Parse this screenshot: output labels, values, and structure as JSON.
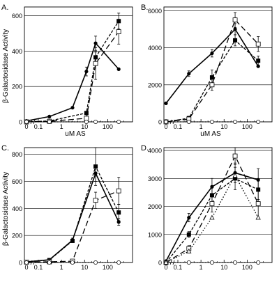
{
  "figure": {
    "shared_ylabel": "β-Galactosidase Activity",
    "shared_xlabel": "uM AS"
  },
  "chart_data": [
    {
      "panel": "A.",
      "type": "line",
      "xscale": "log",
      "x_tick_labels": [
        "0",
        "0.1",
        "1",
        "10",
        "100"
      ],
      "ylim": [
        0,
        650
      ],
      "y_ticks": [
        0,
        200,
        400,
        600
      ],
      "series": [
        {
          "style": "solid",
          "marker": "filled-circle",
          "x": [
            0,
            0.3,
            3,
            12,
            30,
            300
          ],
          "y": [
            5,
            30,
            80,
            285,
            445,
            298
          ],
          "err": [
            0,
            0,
            0,
            25,
            40,
            0
          ]
        },
        {
          "style": "dashed-short",
          "marker": "filled-square",
          "x": [
            0,
            0.3,
            12,
            30,
            300
          ],
          "y": [
            0,
            5,
            50,
            365,
            570
          ],
          "err": [
            0,
            0,
            0,
            30,
            45
          ]
        },
        {
          "style": "dashed-long",
          "marker": "open-square",
          "x": [
            0,
            0.3,
            12,
            30,
            300
          ],
          "y": [
            0,
            3,
            20,
            330,
            510
          ],
          "err": [
            0,
            0,
            0,
            90,
            70
          ]
        },
        {
          "style": "dotted",
          "marker": "open-circle",
          "x": [
            0,
            0.3,
            12,
            30,
            300
          ],
          "y": [
            0,
            0,
            0,
            0,
            0
          ],
          "err": [
            0,
            0,
            0,
            0,
            0
          ]
        }
      ]
    },
    {
      "panel": "B.",
      "type": "line",
      "xscale": "log",
      "x_tick_labels": [
        "0",
        "0.1",
        "1",
        "10",
        "100"
      ],
      "ylim": [
        0,
        6200
      ],
      "y_ticks": [
        0,
        2000,
        4000,
        6000
      ],
      "series": [
        {
          "style": "solid",
          "marker": "filled-circle",
          "x": [
            0,
            0.3,
            3,
            30,
            300
          ],
          "y": [
            1000,
            2600,
            3700,
            5000,
            3000
          ],
          "err": [
            0,
            150,
            200,
            300,
            0
          ]
        },
        {
          "style": "dashed-short",
          "marker": "filled-square",
          "x": [
            0,
            0.3,
            3,
            30,
            300
          ],
          "y": [
            0,
            200,
            2400,
            4400,
            3300
          ],
          "err": [
            0,
            100,
            400,
            300,
            250
          ]
        },
        {
          "style": "dashed-long",
          "marker": "open-square",
          "x": [
            0,
            0.3,
            3,
            30,
            300
          ],
          "y": [
            0,
            150,
            2000,
            5500,
            4200
          ],
          "err": [
            0,
            50,
            300,
            400,
            400
          ]
        },
        {
          "style": "dotted",
          "marker": "open-circle",
          "x": [
            0,
            0.3,
            3,
            30,
            300
          ],
          "y": [
            0,
            0,
            0,
            0,
            0
          ],
          "err": [
            0,
            0,
            0,
            0,
            0
          ]
        }
      ]
    },
    {
      "panel": "C.",
      "type": "line",
      "xscale": "log",
      "x_tick_labels": [
        "0",
        "0.1",
        "1",
        "10",
        "100"
      ],
      "ylim": [
        0,
        850
      ],
      "y_ticks": [
        0,
        200,
        400,
        600,
        800
      ],
      "series": [
        {
          "style": "solid",
          "marker": "filled-circle",
          "x": [
            0,
            0.3,
            3,
            30,
            300
          ],
          "y": [
            5,
            20,
            165,
            660,
            300
          ],
          "err": [
            0,
            0,
            15,
            60,
            25
          ]
        },
        {
          "style": "dashed-short",
          "marker": "filled-square",
          "x": [
            0,
            0.3,
            3,
            30,
            300
          ],
          "y": [
            5,
            18,
            160,
            710,
            370
          ],
          "err": [
            0,
            0,
            0,
            140,
            60
          ]
        },
        {
          "style": "dashed-long",
          "marker": "open-square",
          "x": [
            0,
            0.3,
            3,
            30,
            300
          ],
          "y": [
            3,
            5,
            10,
            460,
            530
          ],
          "err": [
            0,
            0,
            0,
            60,
            100
          ]
        },
        {
          "style": "dotted",
          "marker": "open-circle",
          "x": [
            0,
            0.3,
            3,
            30,
            300
          ],
          "y": [
            0,
            0,
            0,
            0,
            0
          ],
          "err": [
            0,
            0,
            0,
            0,
            0
          ]
        }
      ]
    },
    {
      "panel": "D.",
      "type": "line",
      "xscale": "log",
      "x_tick_labels": [
        "0",
        "0.1",
        "1",
        "10",
        "100"
      ],
      "ylim": [
        0,
        4100
      ],
      "y_ticks": [
        0,
        1000,
        2000,
        3000,
        4000
      ],
      "series": [
        {
          "style": "solid",
          "marker": "filled-circle",
          "x": [
            0,
            0.3,
            3,
            30,
            300
          ],
          "y": [
            50,
            1600,
            2700,
            3200,
            2950
          ],
          "err": [
            0,
            150,
            300,
            350,
            400
          ]
        },
        {
          "style": "dashed-short",
          "marker": "filled-square",
          "x": [
            0,
            0.3,
            3,
            30,
            300
          ],
          "y": [
            0,
            1000,
            2400,
            3000,
            2600
          ],
          "err": [
            0,
            100,
            350,
            400,
            350
          ]
        },
        {
          "style": "dashed-long",
          "marker": "open-square",
          "x": [
            0,
            0.3,
            3,
            30,
            300
          ],
          "y": [
            0,
            500,
            2100,
            3800,
            2100
          ],
          "err": [
            0,
            100,
            300,
            300,
            500
          ]
        },
        {
          "style": "dotted",
          "marker": "open-circle",
          "x": [
            0,
            0.3,
            3,
            30,
            300
          ],
          "y": [
            0,
            0,
            0,
            0,
            0
          ],
          "err": [
            0,
            0,
            0,
            0,
            0
          ]
        },
        {
          "style": "dotted",
          "marker": "open-triangle",
          "x": [
            0,
            0.3,
            3,
            30,
            300
          ],
          "y": [
            0,
            400,
            1600,
            3100,
            1600
          ],
          "err": [
            0,
            0,
            0,
            0,
            0
          ]
        }
      ]
    }
  ]
}
